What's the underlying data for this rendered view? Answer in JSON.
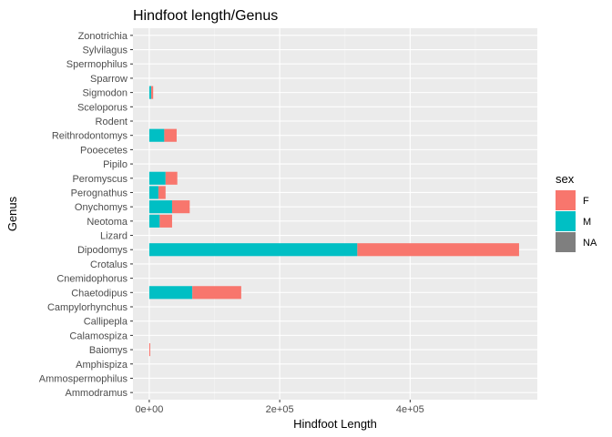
{
  "chart_data": {
    "type": "bar",
    "orientation": "horizontal",
    "stacked": true,
    "title": "Hindfoot length/Genus",
    "xlabel": "Hindfoot Length",
    "ylabel": "Genus",
    "x_ticks": [
      0,
      200000,
      400000
    ],
    "x_tick_labels": [
      "0e+00",
      "2e+05",
      "4e+05"
    ],
    "xlim": [
      -25000,
      595000
    ],
    "grid": true,
    "legend_title": "sex",
    "legend_position": "right",
    "categories": [
      "Ammodramus",
      "Ammospermophilus",
      "Amphispiza",
      "Baiomys",
      "Calamospiza",
      "Callipepla",
      "Campylorhynchus",
      "Chaetodipus",
      "Cnemidophorus",
      "Crotalus",
      "Dipodomys",
      "Lizard",
      "Neotoma",
      "Onychomys",
      "Perognathus",
      "Peromyscus",
      "Pipilo",
      "Pooecetes",
      "Reithrodontomys",
      "Rodent",
      "Sceloporus",
      "Sigmodon",
      "Sparrow",
      "Spermophilus",
      "Sylvilagus",
      "Zonotrichia"
    ],
    "series": [
      {
        "name": "M",
        "color": "#00BFC4",
        "values": [
          0,
          0,
          0,
          0,
          0,
          0,
          0,
          66000,
          0,
          0,
          319000,
          0,
          16000,
          35000,
          14000,
          25000,
          0,
          0,
          23000,
          0,
          0,
          3000,
          0,
          0,
          0,
          0
        ]
      },
      {
        "name": "F",
        "color": "#F8766D",
        "values": [
          0,
          0,
          0,
          1500,
          0,
          0,
          0,
          75000,
          0,
          0,
          248000,
          0,
          19000,
          27000,
          11000,
          18000,
          0,
          0,
          19000,
          0,
          0,
          3000,
          0,
          0,
          0,
          0
        ]
      },
      {
        "name": "NA",
        "color": "#7F7F7F",
        "values": [
          0,
          0,
          0,
          0,
          0,
          0,
          0,
          0,
          0,
          0,
          0,
          0,
          0,
          0,
          0,
          0,
          0,
          0,
          0,
          0,
          0,
          0,
          0,
          0,
          0,
          0
        ]
      }
    ]
  }
}
